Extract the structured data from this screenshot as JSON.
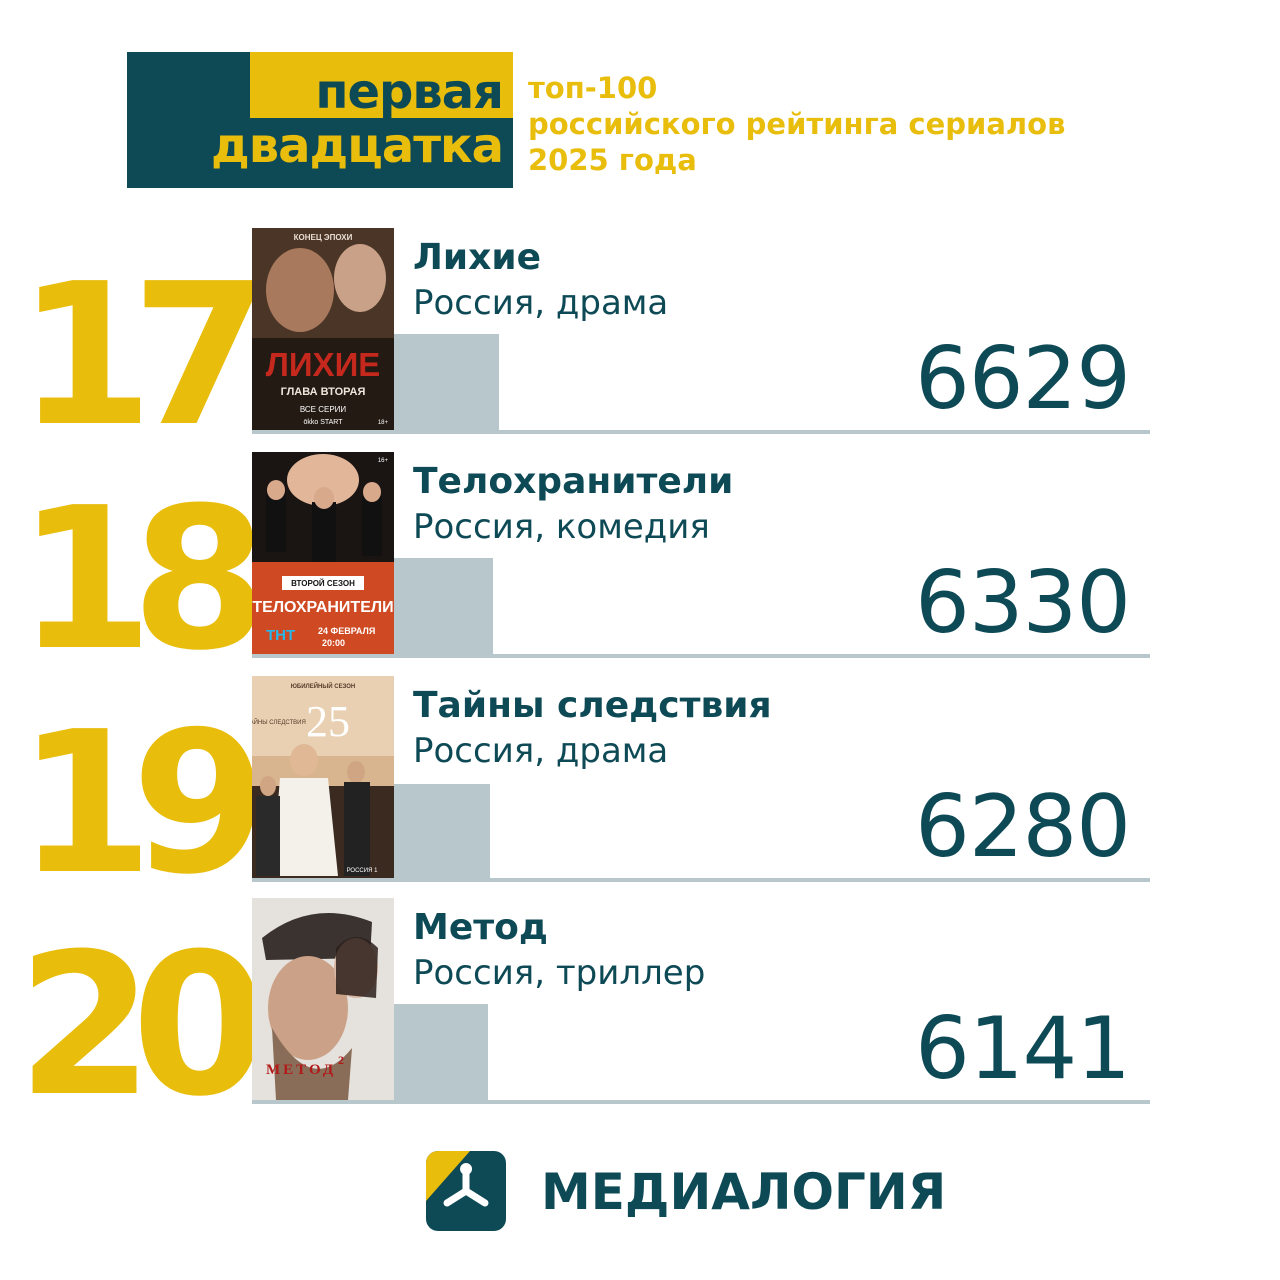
{
  "header": {
    "line1": "первая",
    "line2": "двадцатка",
    "subtitle_lines": [
      "топ-100",
      "российского рейтинга сериалов",
      "2025 года"
    ]
  },
  "items": [
    {
      "rank": "17",
      "title": "Лихие",
      "meta": "Россия, драма",
      "value": "6629",
      "bar_fraction": 0.41,
      "poster": {
        "bg": "#2c1f18",
        "accent": "#c5281d",
        "top_text": "КОНЕЦ ЭПОХИ",
        "big_text": "ЛИХИЕ",
        "sub_text": "ГЛАВА ВТОРАЯ",
        "small_text": "ВСЕ СЕРИИ",
        "brand_text": "ōkko START",
        "age": "18+"
      }
    },
    {
      "rank": "18",
      "title": "Телохранители",
      "meta": "Россия, комедия",
      "value": "6330",
      "bar_fraction": 0.39,
      "poster": {
        "bg": "#cf4a23",
        "accent": "#ffffff",
        "top_text": "ВТОРОЙ СЕЗОН",
        "big_text": "ТЕЛОХРАНИТЕЛИ",
        "sub_text": "24 ФЕВРАЛЯ",
        "small_text": "20:00",
        "brand_text": "ТНТ",
        "age": "16+"
      }
    },
    {
      "rank": "19",
      "title": "Тайны следствия",
      "meta": "Россия, драма",
      "value": "6280",
      "bar_fraction": 0.38,
      "poster": {
        "bg": "#c9a079",
        "accent": "#ffffff",
        "top_text": "ЮБИЛЕЙНЫЙ СЕЗОН",
        "big_text": "25",
        "sub_text": "ТАЙНЫ СЛЕДСТВИЯ",
        "small_text": "",
        "brand_text": "РОССИЯ 1",
        "age": ""
      }
    },
    {
      "rank": "20",
      "title": "Метод",
      "meta": "Россия, триллер",
      "value": "6141",
      "bar_fraction": 0.37,
      "poster": {
        "bg": "#e5e1dc",
        "accent": "#b21a1a",
        "top_text": "",
        "big_text": "МЕТОД",
        "sub_text": "2",
        "small_text": "",
        "brand_text": "",
        "age": ""
      }
    }
  ],
  "footer": {
    "logo_text": "МЕДИАЛОГИЯ"
  }
}
